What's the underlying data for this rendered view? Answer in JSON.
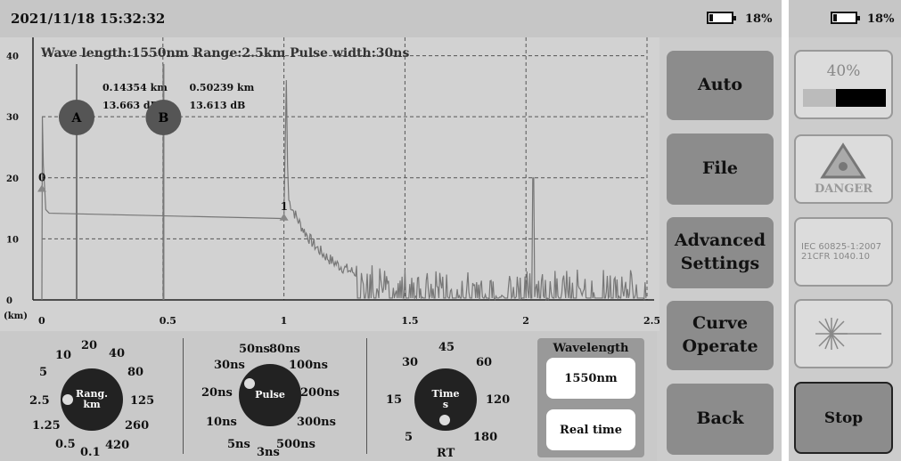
{
  "header": {
    "datetime": "2021/11/18 15:32:32",
    "battery_text": "18%",
    "battery_level": 0.18
  },
  "side_header": {
    "battery_text": "18%",
    "battery_level": 0.18
  },
  "graph": {
    "info": "Wave length:1550nm  Range:2.5km  Pulse width:30ns",
    "unit_label": "(km)",
    "y_ticks": [
      "40",
      "30",
      "20",
      "10",
      "0"
    ],
    "x_ticks": [
      "0",
      "0.5",
      "1",
      "1.5",
      "2",
      "2.5"
    ],
    "marker_a": {
      "label": "A",
      "distance": "0.14354 km",
      "loss": "13.663 dB"
    },
    "marker_b": {
      "label": "B",
      "distance": "0.50239 km",
      "loss": "13.613 dB"
    },
    "event_0": "0",
    "event_1": "1"
  },
  "chart_data": {
    "type": "line",
    "x_range": [
      0,
      2.5
    ],
    "y_range": [
      0,
      43
    ],
    "grid": true,
    "cursor_a_km": 0.14354,
    "cursor_b_km": 0.50239,
    "events": [
      {
        "label": "0",
        "x_km": 0.0
      },
      {
        "label": "1",
        "x_km": 1.0
      }
    ]
  },
  "menu": {
    "auto": "Auto",
    "file": "File",
    "advanced_1": "Advanced",
    "advanced_2": "Settings",
    "curve_1": "Curve",
    "curve_2": "Operate",
    "back": "Back"
  },
  "side": {
    "progress_text": "40%",
    "progress_value": 0.4,
    "danger_label": "DANGER",
    "iec_1": "IEC 60825-1:2007",
    "iec_2": "21CFR 1040.10",
    "stop_label": "Stop"
  },
  "range_dial": {
    "label_1": "Rang.",
    "label_2": "km",
    "options": [
      "10",
      "20",
      "40",
      "5",
      "80",
      "2.5",
      "125",
      "1.25",
      "260",
      "0.5",
      "0.1",
      "420"
    ]
  },
  "pulse_dial": {
    "label": "Pulse",
    "options": [
      "50ns",
      "80ns",
      "30ns",
      "100ns",
      "20ns",
      "200ns",
      "10ns",
      "300ns",
      "5ns",
      "3ns",
      "500ns"
    ]
  },
  "time_dial": {
    "label_1": "Time",
    "label_2": "s",
    "options": [
      "45",
      "30",
      "60",
      "15",
      "120",
      "5",
      "180",
      "RT"
    ]
  },
  "wavelength": {
    "title": "Wavelength",
    "value": "1550nm",
    "mode": "Real time"
  }
}
